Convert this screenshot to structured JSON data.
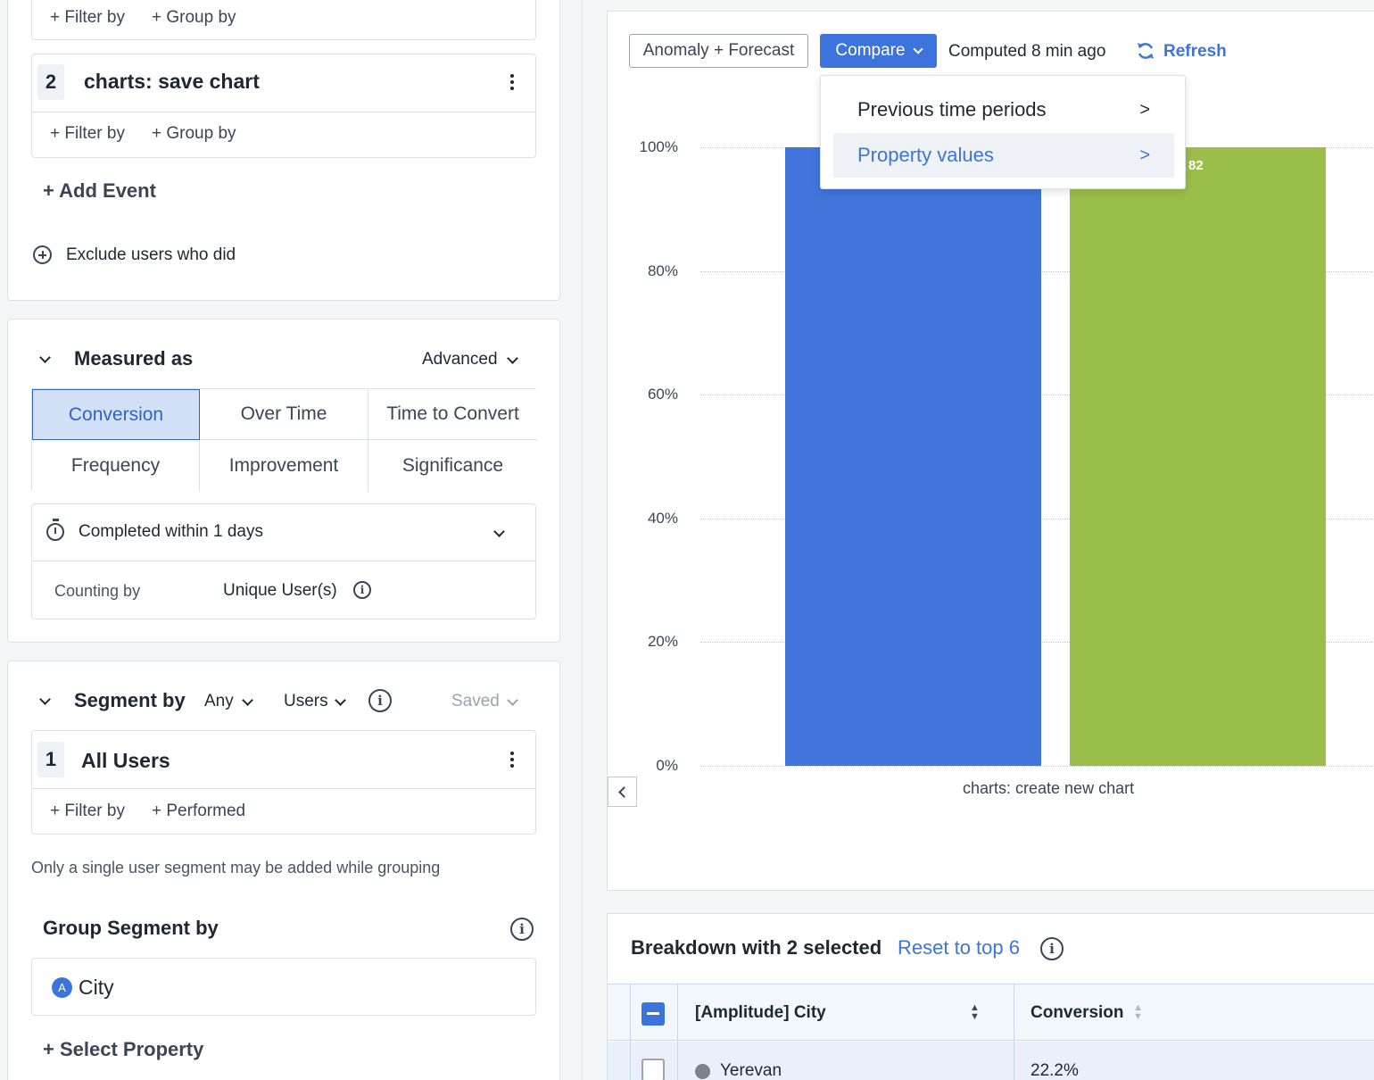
{
  "events": {
    "top_filter_label": "+ Filter by",
    "top_group_label": "+ Group by",
    "step2": {
      "number": "2",
      "name": "charts: save chart",
      "filter_label": "+ Filter by",
      "group_label": "+ Group by"
    },
    "add_event_label": "+ Add Event",
    "exclude_label": "Exclude users who did"
  },
  "measured": {
    "title": "Measured as",
    "advanced_label": "Advanced",
    "options": [
      "Conversion",
      "Over Time",
      "Time to Convert",
      "Frequency",
      "Improvement",
      "Significance"
    ],
    "selected": "Conversion",
    "completed_within": "Completed within 1 days",
    "counting_by_label": "Counting by",
    "counting_by_value": "Unique User(s)"
  },
  "segment": {
    "title": "Segment by",
    "any_label": "Any",
    "users_label": "Users",
    "saved_label": "Saved",
    "item_number": "1",
    "item_name": "All Users",
    "filter_label": "+ Filter by",
    "performed_label": "+ Performed",
    "note": "Only a single user segment may be added while grouping",
    "group_title": "Group Segment by",
    "group_property": "City",
    "select_property_label": "+ Select Property"
  },
  "toolbar": {
    "anomaly_label": "Anomaly + Forecast",
    "compare_label": "Compare",
    "computed_text": "Computed 8 min ago",
    "refresh_label": "Refresh"
  },
  "compare_menu": {
    "items": [
      {
        "label": "Previous time periods",
        "arrow": ">"
      },
      {
        "label": "Property values",
        "arrow": ">"
      }
    ]
  },
  "colors": {
    "accent": "#3d74db",
    "bar_blue": "#4175db",
    "bar_green": "#9bbd49"
  },
  "chart_data": {
    "type": "bar",
    "categories": [
      "charts: create new chart"
    ],
    "series": [
      {
        "values": [
          100
        ],
        "color": "#4175db"
      },
      {
        "values": [
          100
        ],
        "color": "#9bbd49"
      }
    ],
    "visible_data_label": "82",
    "ylim": [
      0,
      100
    ],
    "y_ticks": [
      "0%",
      "20%",
      "40%",
      "60%",
      "80%",
      "100%"
    ],
    "grid": true
  },
  "breakdown": {
    "title": "Breakdown with 2 selected",
    "reset_label": "Reset to top 6",
    "columns": [
      "[Amplitude] City",
      "Conversion"
    ],
    "rows": [
      {
        "city": "Yerevan",
        "conversion": "22.2%"
      }
    ]
  }
}
